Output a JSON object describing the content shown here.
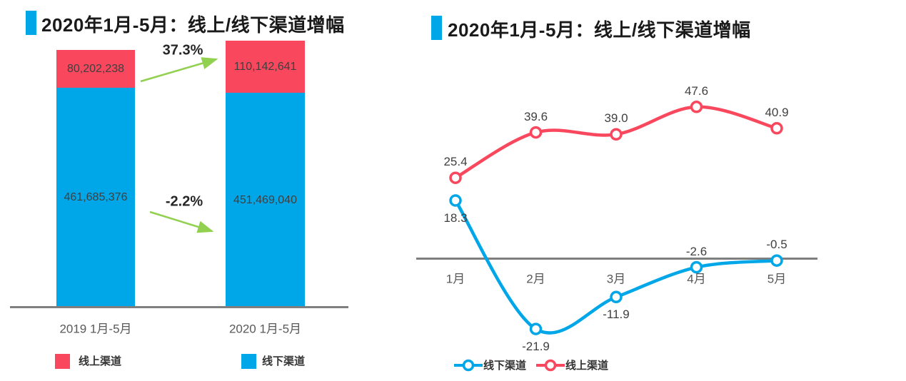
{
  "page": {
    "background": "#ffffff"
  },
  "colors": {
    "online_red": "#F9485E",
    "offline_blue": "#00A7E8",
    "arrow_green": "#92D050",
    "axis_gray": "#7F7F7F",
    "title_marker_blue": "#00A7E8",
    "value_text": "#3F3F3F",
    "tick_text": "#595959"
  },
  "chart_data": [
    {
      "type": "bar",
      "stacked": true,
      "title": "2020年1月-5月：线上/线下渠道增幅",
      "categories": [
        "2019 1月-5月",
        "2020 1月-5月"
      ],
      "series": [
        {
          "name": "线上渠道",
          "color": "#F9485E",
          "values": [
            80202238,
            110142641
          ],
          "value_labels": [
            "80,202,238",
            "110,142,641"
          ]
        },
        {
          "name": "线下渠道",
          "color": "#00A7E8",
          "values": [
            461685376,
            451469040
          ],
          "value_labels": [
            "461,685,376",
            "451,469,040"
          ]
        }
      ],
      "annotations": [
        {
          "label": "37.3%",
          "direction": "up"
        },
        {
          "label": "-2.2%",
          "direction": "down"
        }
      ],
      "legend_position": "bottom"
    },
    {
      "type": "line",
      "title": "2020年1月-5月：线上/线下渠道增幅",
      "categories": [
        "1月",
        "2月",
        "3月",
        "4月",
        "5月"
      ],
      "series": [
        {
          "name": "线下渠道",
          "color": "#00A7E8",
          "values": [
            18.3,
            -21.9,
            -11.9,
            -2.6,
            -0.5
          ],
          "value_labels": [
            "18.3",
            "-21.9",
            "-11.9",
            "-2.6",
            "-0.5"
          ]
        },
        {
          "name": "线上渠道",
          "color": "#F9485E",
          "values": [
            25.4,
            39.6,
            39.0,
            47.6,
            40.9
          ],
          "value_labels": [
            "25.4",
            "39.6",
            "39.0",
            "47.6",
            "40.9"
          ]
        }
      ],
      "grid": false,
      "zero_axis": true,
      "legend_position": "bottom"
    }
  ]
}
